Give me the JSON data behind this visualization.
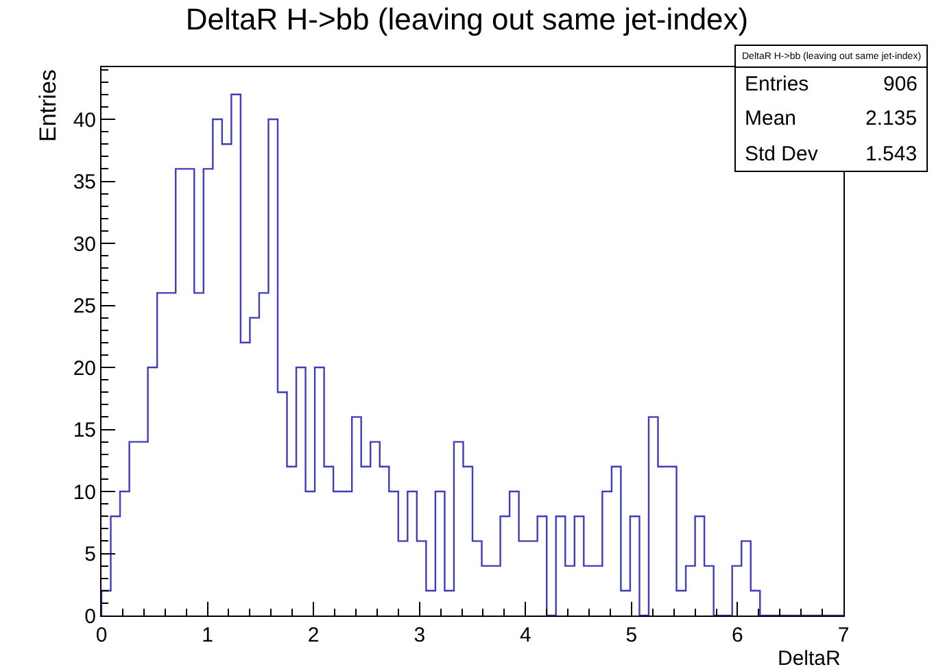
{
  "chart_data": {
    "type": "histogram",
    "title": "DeltaR H->bb (leaving out same jet-index)",
    "xlabel": "DeltaR",
    "ylabel": "Entries",
    "bins": [
      0,
      0.0875,
      0.175,
      0.2625,
      0.35,
      0.4375,
      0.525,
      0.6125,
      0.7,
      0.7875,
      0.875,
      0.9625,
      1.05,
      1.1375,
      1.225,
      1.3125,
      1.4,
      1.4875,
      1.575,
      1.6625,
      1.75,
      1.8375,
      1.925,
      2.0125,
      2.1,
      2.1875,
      2.275,
      2.3625,
      2.45,
      2.5375,
      2.625,
      2.7125,
      2.8,
      2.8875,
      2.975,
      3.0625,
      3.15,
      3.2375,
      3.325,
      3.4125,
      3.5,
      3.5875,
      3.675,
      3.7625,
      3.85,
      3.9375,
      4.025,
      4.1125,
      4.2,
      4.2875,
      4.375,
      4.4625,
      4.55,
      4.6375,
      4.725,
      4.8125,
      4.9,
      4.9875,
      5.075,
      5.1625,
      5.25,
      5.3375,
      5.425,
      5.5125,
      5.6,
      5.6875,
      5.775,
      5.8625,
      5.95,
      6.0375,
      6.125,
      6.2125,
      6.3,
      6.3875,
      6.475,
      6.5625,
      6.65,
      6.7375,
      6.825,
      6.9125,
      7
    ],
    "values": [
      2,
      8,
      10,
      14,
      14,
      20,
      26,
      26,
      36,
      36,
      26,
      36,
      40,
      38,
      42,
      22,
      24,
      26,
      40,
      18,
      12,
      20,
      10,
      20,
      12,
      10,
      10,
      16,
      12,
      14,
      12,
      10,
      6,
      10,
      6,
      2,
      10,
      2,
      14,
      12,
      6,
      4,
      4,
      8,
      10,
      6,
      6,
      8,
      0,
      8,
      4,
      8,
      4,
      4,
      10,
      12,
      2,
      8,
      0,
      16,
      12,
      12,
      2,
      4,
      8,
      4,
      0,
      0,
      4,
      6,
      2,
      0,
      0,
      0,
      0,
      0,
      0,
      0,
      0,
      0
    ],
    "color": "#3d3dbd",
    "xlim": [
      0,
      7
    ],
    "xticks": [
      0,
      1,
      2,
      3,
      4,
      5,
      6,
      7
    ],
    "ylim": [
      0,
      44.2
    ],
    "yticks": [
      0,
      5,
      10,
      15,
      20,
      25,
      30,
      35,
      40
    ],
    "grid": false,
    "annotations": [
      "DeltaR H->bb (leaving out same jet-index)",
      "Entries",
      "906",
      "Mean",
      "2.135",
      "Std Dev",
      "1.543"
    ]
  }
}
